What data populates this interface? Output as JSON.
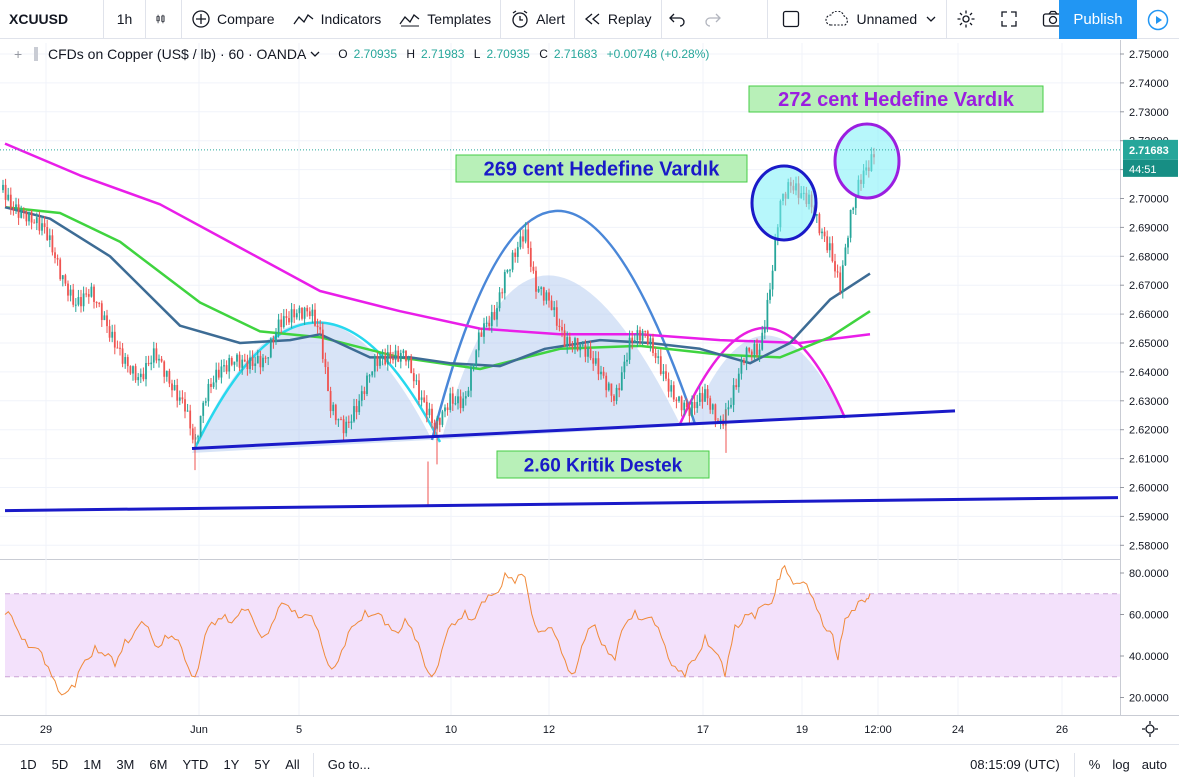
{
  "toolbar": {
    "symbol": "XCUUSD",
    "interval": "1h",
    "compare": "Compare",
    "indicators": "Indicators",
    "templates": "Templates",
    "alert": "Alert",
    "replay": "Replay",
    "layout_name": "Unnamed",
    "publish": "Publish"
  },
  "legend": {
    "title": "CFDs on Copper (US$ / lb) · 60 · OANDA",
    "o_label": "O",
    "o": "2.70935",
    "h_label": "H",
    "h": "2.71983",
    "l_label": "L",
    "l": "2.70935",
    "c_label": "C",
    "c": "2.71683",
    "change": "+0.00748 (+0.28%)"
  },
  "price_badge": {
    "price": "2.71683",
    "countdown": "44:51"
  },
  "bottom": {
    "ranges": [
      "1D",
      "5D",
      "1M",
      "3M",
      "6M",
      "YTD",
      "1Y",
      "5Y",
      "All"
    ],
    "goto": "Go to...",
    "clock": "08:15:09 (UTC)",
    "pct": "%",
    "log": "log",
    "auto": "auto"
  },
  "colors": {
    "up": "#26a69a",
    "down": "#ef5350",
    "accent": "#2196f3",
    "ma_magenta": "#e91ee9",
    "ma_green": "#3fd43f",
    "ma_steel": "#3d6c95",
    "trendline": "#1a1ac8",
    "rsi_line": "#f08a3a",
    "rsi_band": "#f3e1fb"
  },
  "chart_data": {
    "type": "candlestick",
    "symbol": "XCUUSD",
    "interval": "60",
    "y_ticks": [
      "2.75000",
      "2.74000",
      "2.73000",
      "2.72000",
      "2.71000",
      "2.70000",
      "2.69000",
      "2.68000",
      "2.67000",
      "2.66000",
      "2.65000",
      "2.64000",
      "2.63000",
      "2.62000",
      "2.61000",
      "2.60000",
      "2.59000",
      "2.58000"
    ],
    "ylim": [
      2.575,
      2.755
    ],
    "x_ticks": [
      "29",
      "Jun",
      "5",
      "10",
      "12",
      "17",
      "19",
      "12:00",
      "24",
      "26"
    ],
    "series_close_path": [
      [
        0,
        2.705
      ],
      [
        10,
        2.698
      ],
      [
        25,
        2.696
      ],
      [
        45,
        2.688
      ],
      [
        60,
        2.674
      ],
      [
        75,
        2.665
      ],
      [
        90,
        2.668
      ],
      [
        110,
        2.652
      ],
      [
        125,
        2.645
      ],
      [
        140,
        2.638
      ],
      [
        155,
        2.645
      ],
      [
        170,
        2.636
      ],
      [
        185,
        2.63
      ],
      [
        195,
        2.615
      ],
      [
        205,
        2.63
      ],
      [
        220,
        2.64
      ],
      [
        235,
        2.646
      ],
      [
        250,
        2.643
      ],
      [
        265,
        2.642
      ],
      [
        280,
        2.658
      ],
      [
        295,
        2.662
      ],
      [
        310,
        2.66
      ],
      [
        320,
        2.652
      ],
      [
        330,
        2.628
      ],
      [
        345,
        2.622
      ],
      [
        360,
        2.63
      ],
      [
        375,
        2.642
      ],
      [
        390,
        2.646
      ],
      [
        405,
        2.648
      ],
      [
        420,
        2.63
      ],
      [
        435,
        2.62
      ],
      [
        450,
        2.632
      ],
      [
        465,
        2.63
      ],
      [
        480,
        2.652
      ],
      [
        495,
        2.66
      ],
      [
        505,
        2.675
      ],
      [
        515,
        2.682
      ],
      [
        525,
        2.688
      ],
      [
        535,
        2.668
      ],
      [
        550,
        2.665
      ],
      [
        565,
        2.652
      ],
      [
        580,
        2.648
      ],
      [
        600,
        2.64
      ],
      [
        615,
        2.632
      ],
      [
        630,
        2.65
      ],
      [
        645,
        2.652
      ],
      [
        660,
        2.643
      ],
      [
        675,
        2.632
      ],
      [
        690,
        2.625
      ],
      [
        705,
        2.632
      ],
      [
        720,
        2.623
      ],
      [
        730,
        2.63
      ],
      [
        745,
        2.645
      ],
      [
        760,
        2.647
      ],
      [
        770,
        2.67
      ],
      [
        780,
        2.7
      ],
      [
        790,
        2.705
      ],
      [
        800,
        2.7
      ],
      [
        810,
        2.698
      ],
      [
        820,
        2.69
      ],
      [
        830,
        2.684
      ],
      [
        840,
        2.67
      ],
      [
        850,
        2.692
      ],
      [
        860,
        2.705
      ],
      [
        870,
        2.712
      ],
      [
        875,
        2.717
      ]
    ],
    "moving_averages": [
      {
        "color": "#e91ee9",
        "points": [
          [
            5,
            2.719
          ],
          [
            80,
            2.708
          ],
          [
            160,
            2.698
          ],
          [
            240,
            2.683
          ],
          [
            320,
            2.668
          ],
          [
            400,
            2.661
          ],
          [
            480,
            2.655
          ],
          [
            560,
            2.653
          ],
          [
            640,
            2.653
          ],
          [
            720,
            2.651
          ],
          [
            800,
            2.65
          ],
          [
            870,
            2.653
          ]
        ]
      },
      {
        "color": "#3fd43f",
        "points": [
          [
            5,
            2.697
          ],
          [
            60,
            2.695
          ],
          [
            120,
            2.685
          ],
          [
            200,
            2.664
          ],
          [
            260,
            2.654
          ],
          [
            320,
            2.652
          ],
          [
            400,
            2.645
          ],
          [
            480,
            2.641
          ],
          [
            560,
            2.648
          ],
          [
            640,
            2.649
          ],
          [
            720,
            2.646
          ],
          [
            780,
            2.645
          ],
          [
            830,
            2.652
          ],
          [
            870,
            2.661
          ]
        ]
      },
      {
        "color": "#3d6c95",
        "points": [
          [
            5,
            2.697
          ],
          [
            50,
            2.693
          ],
          [
            110,
            2.68
          ],
          [
            180,
            2.656
          ],
          [
            240,
            2.65
          ],
          [
            290,
            2.651
          ],
          [
            320,
            2.653
          ],
          [
            370,
            2.645
          ],
          [
            410,
            2.645
          ],
          [
            450,
            2.643
          ],
          [
            500,
            2.642
          ],
          [
            545,
            2.648
          ],
          [
            600,
            2.651
          ],
          [
            650,
            2.65
          ],
          [
            700,
            2.648
          ],
          [
            750,
            2.643
          ],
          [
            790,
            2.65
          ],
          [
            830,
            2.665
          ],
          [
            870,
            2.674
          ]
        ]
      }
    ],
    "trendlines": [
      {
        "from": [
          192,
          2.6135
        ],
        "to": [
          955,
          2.6265
        ],
        "color": "#1a1ac8"
      },
      {
        "from": [
          5,
          2.592
        ],
        "to": [
          1118,
          2.5965
        ],
        "color": "#1a1ac8"
      }
    ],
    "annotations": [
      {
        "text": "272 cent Hedefine Vardık",
        "color": "#9b1ee0"
      },
      {
        "text": "269 cent Hedefine Vardık",
        "color": "#1a1ac8"
      },
      {
        "text": "2.60 Kritik Destek",
        "color": "#1a1ac8"
      }
    ],
    "rsi": {
      "y_ticks": [
        "80.0000",
        "60.0000",
        "40.0000",
        "20.0000"
      ],
      "ylim": [
        13,
        83
      ],
      "band": [
        30,
        70
      ],
      "points": [
        [
          5,
          60
        ],
        [
          15,
          55
        ],
        [
          25,
          48
        ],
        [
          35,
          44
        ],
        [
          45,
          36
        ],
        [
          55,
          28
        ],
        [
          65,
          22
        ],
        [
          75,
          25
        ],
        [
          85,
          38
        ],
        [
          95,
          45
        ],
        [
          105,
          40
        ],
        [
          115,
          35
        ],
        [
          125,
          48
        ],
        [
          135,
          52
        ],
        [
          145,
          55
        ],
        [
          155,
          45
        ],
        [
          165,
          50
        ],
        [
          175,
          48
        ],
        [
          185,
          38
        ],
        [
          195,
          30
        ],
        [
          205,
          50
        ],
        [
          215,
          55
        ],
        [
          225,
          60
        ],
        [
          235,
          58
        ],
        [
          245,
          62
        ],
        [
          255,
          55
        ],
        [
          265,
          50
        ],
        [
          275,
          58
        ],
        [
          285,
          65
        ],
        [
          295,
          62
        ],
        [
          305,
          60
        ],
        [
          315,
          55
        ],
        [
          325,
          40
        ],
        [
          335,
          35
        ],
        [
          345,
          45
        ],
        [
          355,
          55
        ],
        [
          365,
          62
        ],
        [
          375,
          60
        ],
        [
          385,
          55
        ],
        [
          395,
          52
        ],
        [
          405,
          58
        ],
        [
          415,
          48
        ],
        [
          425,
          35
        ],
        [
          435,
          32
        ],
        [
          445,
          48
        ],
        [
          455,
          55
        ],
        [
          465,
          62
        ],
        [
          475,
          58
        ],
        [
          485,
          66
        ],
        [
          495,
          70
        ],
        [
          505,
          80
        ],
        [
          515,
          75
        ],
        [
          525,
          78
        ],
        [
          535,
          55
        ],
        [
          545,
          52
        ],
        [
          555,
          50
        ],
        [
          565,
          38
        ],
        [
          575,
          32
        ],
        [
          585,
          48
        ],
        [
          595,
          55
        ],
        [
          605,
          45
        ],
        [
          615,
          38
        ],
        [
          625,
          55
        ],
        [
          635,
          62
        ],
        [
          645,
          58
        ],
        [
          655,
          55
        ],
        [
          665,
          45
        ],
        [
          675,
          35
        ],
        [
          685,
          30
        ],
        [
          695,
          38
        ],
        [
          705,
          50
        ],
        [
          715,
          42
        ],
        [
          725,
          30
        ],
        [
          735,
          55
        ],
        [
          745,
          60
        ],
        [
          755,
          58
        ],
        [
          765,
          65
        ],
        [
          775,
          70
        ],
        [
          782,
          82
        ],
        [
          790,
          78
        ],
        [
          800,
          75
        ],
        [
          810,
          70
        ],
        [
          820,
          60
        ],
        [
          830,
          52
        ],
        [
          838,
          38
        ],
        [
          845,
          58
        ],
        [
          855,
          62
        ],
        [
          865,
          66
        ],
        [
          870,
          70
        ]
      ]
    }
  }
}
